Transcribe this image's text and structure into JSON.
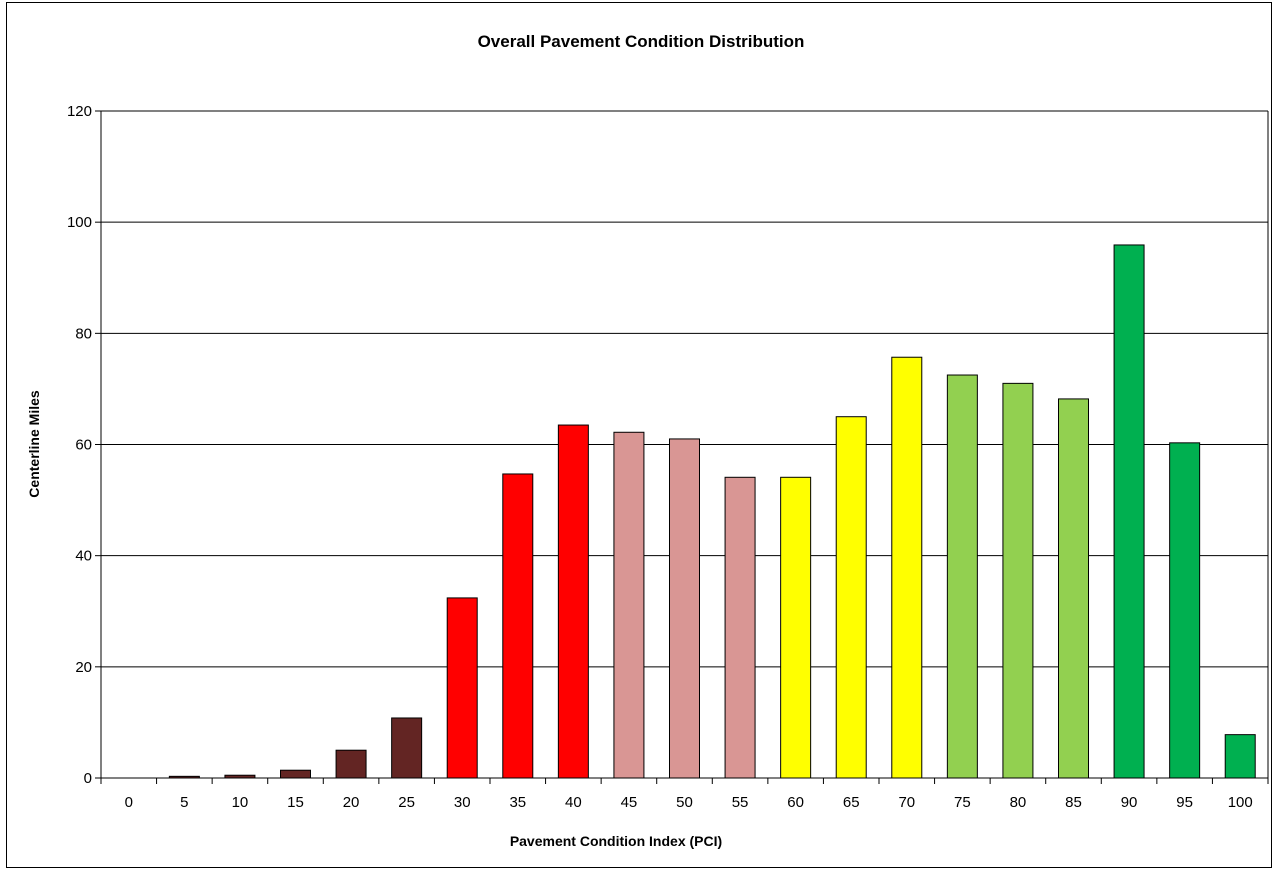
{
  "chart_data": {
    "type": "bar",
    "title": "Overall Pavement Condition Distribution",
    "xlabel": "Pavement Condition Index (PCI)",
    "ylabel": "Centerline Miles",
    "ylim": [
      0,
      120
    ],
    "yticks": [
      0,
      20,
      40,
      60,
      80,
      100,
      120
    ],
    "grid": true,
    "categories": [
      "0",
      "5",
      "10",
      "15",
      "20",
      "25",
      "30",
      "35",
      "40",
      "45",
      "50",
      "55",
      "60",
      "65",
      "70",
      "75",
      "80",
      "85",
      "90",
      "95",
      "100"
    ],
    "values": [
      0,
      0.3,
      0.5,
      1.4,
      5.0,
      10.8,
      32.4,
      54.7,
      63.5,
      62.2,
      61.0,
      54.1,
      54.1,
      65.0,
      75.7,
      72.5,
      71.0,
      68.2,
      95.9,
      60.3,
      7.8
    ],
    "colors": [
      "#632523",
      "#632523",
      "#632523",
      "#632523",
      "#632523",
      "#632523",
      "#ff0000",
      "#ff0000",
      "#ff0000",
      "#d99694",
      "#d99694",
      "#d99694",
      "#ffff00",
      "#ffff00",
      "#ffff00",
      "#92d050",
      "#92d050",
      "#92d050",
      "#00b050",
      "#00b050",
      "#00b050"
    ]
  }
}
